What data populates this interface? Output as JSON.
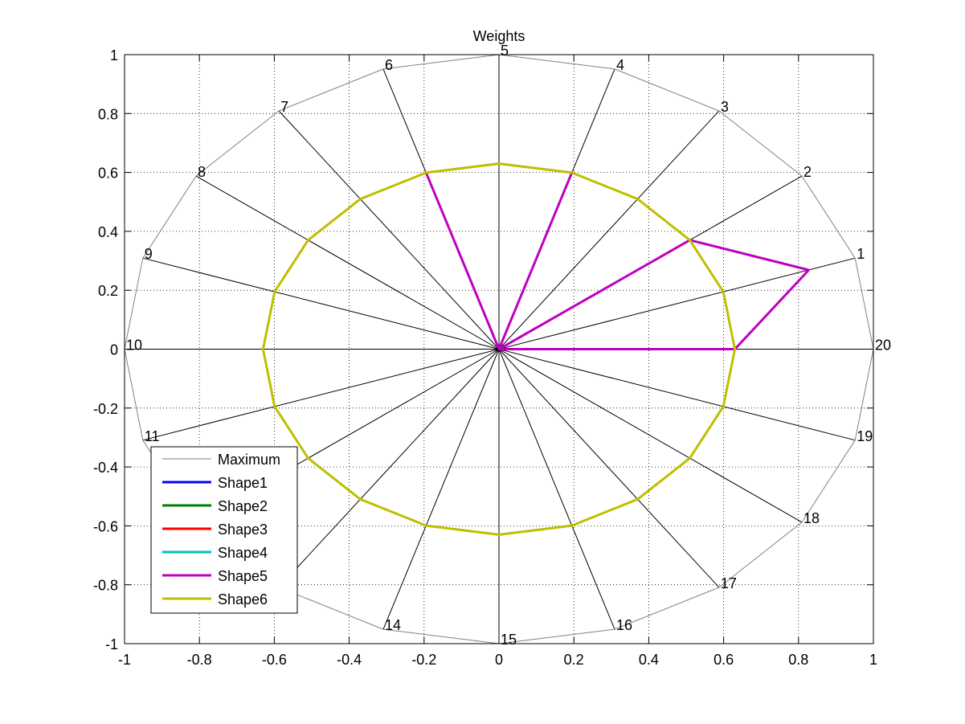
{
  "chart_data": {
    "type": "radar",
    "title": "Weights",
    "xlabel": "",
    "ylabel": "",
    "xlim": [
      -1,
      1
    ],
    "ylim": [
      -1,
      1
    ],
    "xticks": [
      -1,
      -0.8,
      -0.6,
      -0.4,
      -0.2,
      0,
      0.2,
      0.4,
      0.6,
      0.8,
      1
    ],
    "yticks": [
      -1,
      -0.8,
      -0.6,
      -0.4,
      -0.2,
      0,
      0.2,
      0.4,
      0.6,
      0.8,
      1
    ],
    "xtick_labels": [
      "-1",
      "-0.8",
      "-0.6",
      "-0.4",
      "-0.2",
      "0",
      "0.2",
      "0.4",
      "0.6",
      "0.8",
      "1"
    ],
    "ytick_labels": [
      "-1",
      "-0.8",
      "-0.6",
      "-0.4",
      "-0.2",
      "0",
      "0.2",
      "0.4",
      "0.6",
      "0.8",
      "1"
    ],
    "grid": true,
    "grid_style": "dotted",
    "legend_position": "bottom-left",
    "spokes": [
      "1",
      "2",
      "3",
      "4",
      "5",
      "6",
      "7",
      "8",
      "9",
      "10",
      "11",
      "12",
      "13",
      "14",
      "15",
      "16",
      "17",
      "18",
      "19",
      "20"
    ],
    "spoke_angles_deg": [
      18,
      36,
      54,
      72,
      90,
      108,
      126,
      144,
      162,
      180,
      198,
      216,
      234,
      252,
      270,
      288,
      306,
      324,
      342,
      360
    ],
    "series": [
      {
        "name": "Maximum",
        "color": "#808080",
        "values": [
          1,
          1,
          1,
          1,
          1,
          1,
          1,
          1,
          1,
          1,
          1,
          1,
          1,
          1,
          1,
          1,
          1,
          1,
          1,
          1
        ]
      },
      {
        "name": "Shape1",
        "color": "#0000ff",
        "values": []
      },
      {
        "name": "Shape2",
        "color": "#008000",
        "values": []
      },
      {
        "name": "Shape3",
        "color": "#ff0000",
        "values": []
      },
      {
        "name": "Shape4",
        "color": "#00bfbf",
        "values": []
      },
      {
        "name": "Shape5",
        "color": "#bf00bf",
        "values": [
          0.87,
          0.63,
          0,
          0.63,
          0,
          0.63,
          0,
          0,
          0,
          0,
          0,
          0,
          0,
          0,
          0,
          0,
          0,
          0,
          0,
          0.63
        ]
      },
      {
        "name": "Shape6",
        "color": "#bfbf00",
        "values": [
          0.63,
          0.63,
          0.63,
          0.63,
          0.63,
          0.63,
          0.63,
          0.63,
          0.63,
          0.63,
          0.63,
          0.63,
          0.63,
          0.63,
          0.63,
          0.63,
          0.63,
          0.63,
          0.63,
          0.63
        ]
      }
    ]
  }
}
